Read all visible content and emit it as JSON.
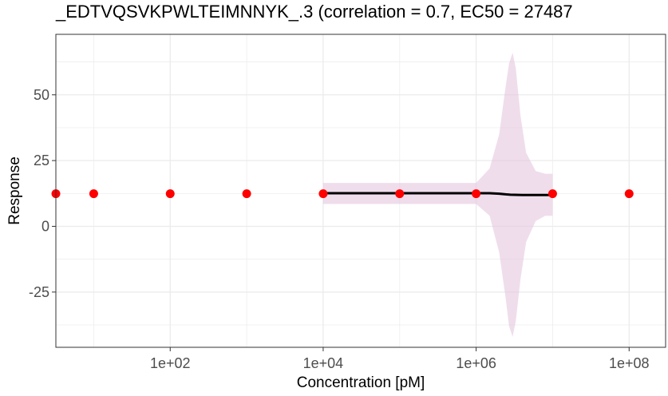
{
  "chart_data": {
    "type": "scatter",
    "title": "_EDTVQSVKPWLTEIMNNYK_.3 (correlation = 0.7, EC50 = 27487",
    "xlabel": "Concentration [pM]",
    "ylabel": "Response",
    "x_scale": "log10",
    "xlim": [
      3.2,
      300000000
    ],
    "ylim": [
      -46,
      73
    ],
    "x_ticks": [
      100,
      10000,
      1000000,
      100000000
    ],
    "x_tick_labels": [
      "1e+02",
      "1e+04",
      "1e+06",
      "1e+08"
    ],
    "y_ticks": [
      -25,
      0,
      25,
      50
    ],
    "y_tick_labels": [
      "-25",
      "0",
      "25",
      "50"
    ],
    "grid": true,
    "legend": "none",
    "colors": {
      "points": "#ff0000",
      "fit_line": "#000000",
      "ribbon": "#e5c6e0",
      "grid": "#ebebeb",
      "panel_border": "#333333"
    },
    "points": {
      "x": [
        3.2,
        10,
        100,
        1000,
        10000,
        100000,
        1000000,
        10000000,
        100000000
      ],
      "y": [
        12.4,
        12.4,
        12.4,
        12.4,
        12.4,
        12.4,
        12.4,
        12.4,
        12.4
      ]
    },
    "fit_line": {
      "x": [
        10000,
        100000,
        1000000,
        1500000,
        2000000,
        2800000,
        4000000,
        6000000,
        10000000
      ],
      "y": [
        12.6,
        12.6,
        12.6,
        12.6,
        12.4,
        12.0,
        11.9,
        11.9,
        11.9
      ]
    },
    "ribbon": {
      "x": [
        10000,
        100000,
        1000000,
        1500000,
        2000000,
        2400000,
        2700000,
        3000000,
        3300000,
        3800000,
        4500000,
        6000000,
        8000000,
        10000000
      ],
      "upper": [
        16.5,
        16.5,
        16.5,
        22,
        35,
        52,
        62,
        66,
        60,
        42,
        28,
        21,
        20,
        20
      ],
      "lower": [
        8.5,
        8.5,
        8.5,
        4,
        -10,
        -26,
        -38,
        -42,
        -36,
        -20,
        -6,
        2,
        4,
        4
      ]
    }
  }
}
